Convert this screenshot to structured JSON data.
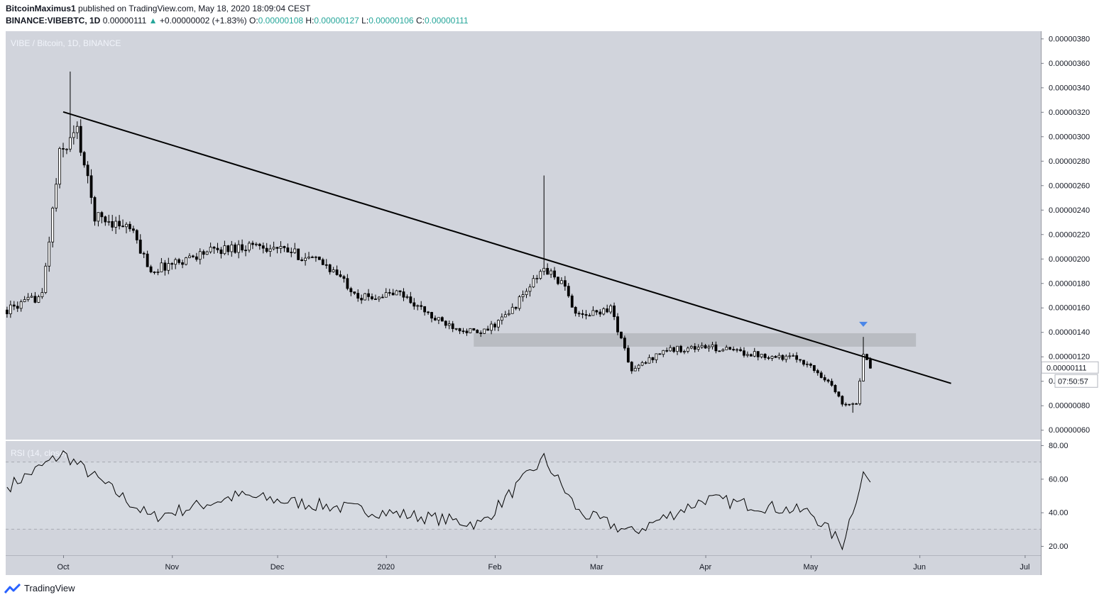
{
  "header": {
    "author": "BitcoinMaximus1",
    "published": "published on TradingView.com, May 18, 2020 18:09:04 CEST",
    "symbol": "BINANCE:VIBEBTC, 1D",
    "last": "0.00000111",
    "change_arrow": "▲",
    "change": "+0.00000002 (+1.83%)",
    "o_label": "O:",
    "o_val": "0.00000108",
    "h_label": "H:",
    "h_val": "0.00000127",
    "l_label": "L:",
    "l_val": "0.00000106",
    "c_label": "C:",
    "c_val": "0.00000111"
  },
  "footer": {
    "brand": "TradingView",
    "logo_icon": "tradingview-logo-icon"
  },
  "colors": {
    "background": "#ffffff",
    "plot_bg": "#d1d4dc",
    "candle": "#000000",
    "trendline": "#000000",
    "zone": "#b5b7bd",
    "signal_marker": "#4a86e8",
    "price_up": "#26a69a",
    "rsi_line": "#000000"
  },
  "chart_data": [
    {
      "type": "candlestick",
      "legend": "VIBE / Bitcoin, 1D, BINANCE",
      "x_ticks": [
        "Oct",
        "Nov",
        "Dec",
        "2020",
        "Feb",
        "Mar",
        "Apr",
        "May",
        "Jun",
        "Jul"
      ],
      "y_ticks": [
        "0.00000380",
        "0.00000360",
        "0.00000340",
        "0.00000320",
        "0.00000300",
        "0.00000280",
        "0.00000260",
        "0.00000240",
        "0.00000220",
        "0.00000200",
        "0.00000180",
        "0.00000160",
        "0.00000140",
        "0.00000120",
        "0.00000100",
        "0.00000080",
        "0.00000060"
      ],
      "ylim": [
        5.2e-07,
        3.86e-06
      ],
      "price_label": "0.00000111",
      "countdown_label": "07:50:57",
      "approx_close_path": [
        {
          "date": "2019-09-15",
          "close": 1.58e-06
        },
        {
          "date": "2019-09-25",
          "close": 1.7e-06
        },
        {
          "date": "2019-09-30",
          "close": 2.85e-06
        },
        {
          "date": "2019-10-05",
          "close": 3.05e-06
        },
        {
          "date": "2019-10-10",
          "close": 2.35e-06
        },
        {
          "date": "2019-10-20",
          "close": 2.25e-06
        },
        {
          "date": "2019-10-26",
          "close": 1.9e-06
        },
        {
          "date": "2019-11-10",
          "close": 2.05e-06
        },
        {
          "date": "2019-11-25",
          "close": 2.12e-06
        },
        {
          "date": "2019-12-05",
          "close": 2.05e-06
        },
        {
          "date": "2019-12-15",
          "close": 1.95e-06
        },
        {
          "date": "2019-12-25",
          "close": 1.68e-06
        },
        {
          "date": "2020-01-05",
          "close": 1.72e-06
        },
        {
          "date": "2020-01-15",
          "close": 1.5e-06
        },
        {
          "date": "2020-01-28",
          "close": 1.38e-06
        },
        {
          "date": "2020-02-05",
          "close": 1.55e-06
        },
        {
          "date": "2020-02-15",
          "close": 1.92e-06
        },
        {
          "date": "2020-02-20",
          "close": 1.8e-06
        },
        {
          "date": "2020-02-25",
          "close": 1.52e-06
        },
        {
          "date": "2020-03-05",
          "close": 1.6e-06
        },
        {
          "date": "2020-03-11",
          "close": 1.08e-06
        },
        {
          "date": "2020-03-20",
          "close": 1.25e-06
        },
        {
          "date": "2020-04-01",
          "close": 1.28e-06
        },
        {
          "date": "2020-04-15",
          "close": 1.22e-06
        },
        {
          "date": "2020-04-28",
          "close": 1.18e-06
        },
        {
          "date": "2020-05-06",
          "close": 1e-06
        },
        {
          "date": "2020-05-10",
          "close": 8.2e-07
        },
        {
          "date": "2020-05-14",
          "close": 8.2e-07
        },
        {
          "date": "2020-05-16",
          "close": 1.2e-06
        },
        {
          "date": "2020-05-18",
          "close": 1.11e-06
        }
      ],
      "annotations": {
        "trendline": {
          "from": {
            "date": "2019-10-01",
            "value": 3.2e-06
          },
          "to": {
            "date": "2020-06-10",
            "value": 9.8e-07
          }
        },
        "resistance_zone": {
          "from_date": "2020-01-26",
          "to_date": "2020-05-31",
          "low": 1.28e-06,
          "high": 1.39e-06
        },
        "signal_marker": {
          "date": "2020-05-16",
          "value": 1.46e-06,
          "shape": "down-triangle"
        }
      }
    },
    {
      "type": "line",
      "legend": "RSI (14, close)",
      "y_ticks": [
        "80.00",
        "60.00",
        "40.00",
        "20.00"
      ],
      "ylim": [
        14.5,
        82.5
      ],
      "bands": [
        30,
        70
      ],
      "approx_values": [
        {
          "date": "2019-09-15",
          "value": 55
        },
        {
          "date": "2019-10-01",
          "value": 75
        },
        {
          "date": "2019-10-12",
          "value": 58
        },
        {
          "date": "2019-10-26",
          "value": 37
        },
        {
          "date": "2019-11-20",
          "value": 50
        },
        {
          "date": "2019-12-10",
          "value": 45
        },
        {
          "date": "2020-01-01",
          "value": 40
        },
        {
          "date": "2020-01-28",
          "value": 33
        },
        {
          "date": "2020-02-15",
          "value": 72
        },
        {
          "date": "2020-02-25",
          "value": 40
        },
        {
          "date": "2020-03-11",
          "value": 28
        },
        {
          "date": "2020-04-01",
          "value": 48
        },
        {
          "date": "2020-05-01",
          "value": 40
        },
        {
          "date": "2020-05-10",
          "value": 21
        },
        {
          "date": "2020-05-16",
          "value": 63
        },
        {
          "date": "2020-05-18",
          "value": 58
        }
      ]
    }
  ]
}
